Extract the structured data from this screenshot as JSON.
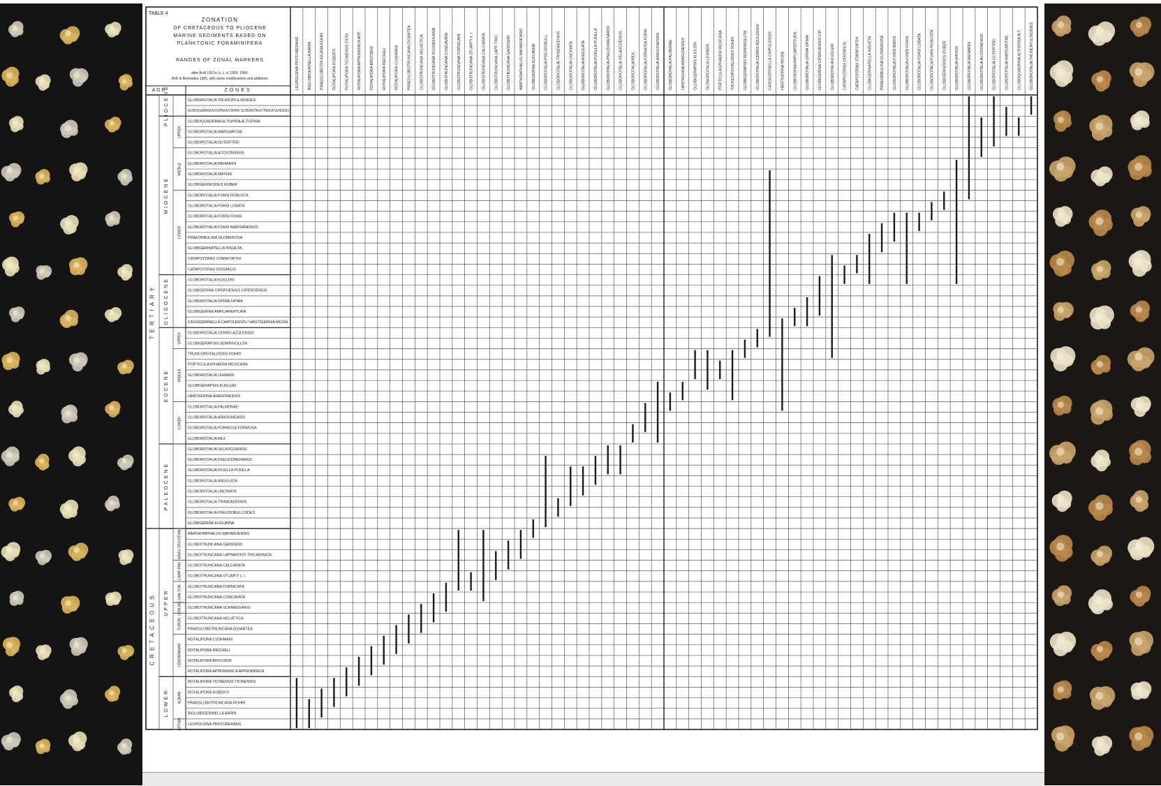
{
  "table": {
    "label": "TABLE 4",
    "title_lines": [
      "ZONATION",
      "OF CRETACEOUS TO PLIOCENE",
      "MARINE SEDIMENTS BASED ON",
      "PLANKTONIC FORAMINIFERA"
    ],
    "subtitle": "RANGES OF ZONAL MARKERS",
    "credit_lines": [
      "after Bolli 1957a, b, c, d; 1959; 1966;",
      "Bolli & Bermúdez 1965, with some modifications and additions"
    ],
    "age_header": "AGE",
    "zones_header": "ZONES"
  },
  "zones": [
    "GLOBOROTALIA TRUNCATULINOIDES",
    "GLOBOQUADRINA ALTISPIRA ALTISPIRA / GLOBOROTALIA TRUNCATULINOIDES",
    "GLOBOQUADRINA ALTISPIRA ALTISPIRA",
    "GLOBOROTALIA MARGARITAE",
    "GLOBOROTALIA DUTERTREI",
    "GLOBOROTALIA ACOSTAENSIS",
    "GLOBOROTALIA MENARDII",
    "GLOBOROTALIA MAYERI",
    "GLOBIGERINOIDES RUBER",
    "GLOBOROTALIA FOHSI ROBUSTA",
    "GLOBOROTALIA FOHSI LOBATA",
    "GLOBOROTALIA FOHSI FOHSI",
    "GLOBOROTALIA FOHSI BARISANENSIS",
    "PRAEORBULINA GLOMEROSA",
    "GLOBIGERINATELLA INSUETA",
    "CATAPSYDRAX STAINFORTHI",
    "CATAPSYDRAX DISSIMILIS",
    "GLOBOROTALIA KUGLERI",
    "GLOBIGERINA CIPEROENSIS CIPEROENSIS",
    "GLOBOROTALIA OPIMA OPIMA",
    "GLOBIGERINA AMPLIAPERTURA",
    "CASSIGERINELLA CHIPOLENSIS / HASTIGERINA MICRA",
    "GLOBOROTALIA CERRO-AZULENSIS",
    "GLOBIGERAPSIS SEMIINVOLUTA",
    "TRUNCOROTALOIDES ROHRI",
    "PORTICULASPHAERA MEXICANA",
    "GLOBOROTALIA LEHNERI",
    "GLOBIGERAPSIS KUGLERI",
    "HANTKENINA ARAGONENSIS",
    "GLOBOROTALIA PALMERAE",
    "GLOBOROTALIA ARAGONENSIS",
    "GLOBOROTALIA FORMOSA FORMOSA",
    "GLOBOROTALIA REX",
    "GLOBOROTALIA VELASCOENSIS",
    "GLOBOROTALIA PSEUDOMENARDII",
    "GLOBOROTALIA PUSILLA PUSILLA",
    "GLOBOROTALIA ANGULATA",
    "GLOBOROTALIA UNCINATA",
    "GLOBOROTALIA TRINIDADENSIS",
    "GLOBOROTALIA PSEUDOBULLOIDES",
    "GLOBIGERINA EUGUBINA",
    "ABATHOMPHALUS MAYAROENSIS",
    "GLOBOTRUNCANA GANSSERI",
    "GLOBOTRUNCANA LAPPARENTI TRICARINATA",
    "GLOBOTRUNCANA CALCARATA",
    "GLOBOTRUNCANA STUARTI s. l.",
    "GLOBOTRUNCANA FORNICATA",
    "GLOBOTRUNCANA CONCAVATA",
    "GLOBOTRUNCANA SCHNEEGANSI",
    "GLOBOTRUNCANA HELVETICA",
    "PRAEGLOBOTRUNCANA GIGANTEA",
    "ROTALIPORA CUSHMANI",
    "ROTALIPORA REICHELI",
    "ROTALIPORA BROTZENI",
    "ROTALIPORA APPENNINICA APPENNINICA",
    "ROTALIPORA TICINENSIS TICINENSIS",
    "ROTALIPORA ROBERTI",
    "PRAEGLOBOTRUNCANA ROHRI",
    "BIGLOBIGERINELLA BARRI",
    "LEUPOLDINA PROTUBERANS"
  ],
  "columns": [
    "LEUPOLDINA PROTUBERANS",
    "BIGLOBIGERINELLA BARRI",
    "PRAEGLOBOTRUNCANA ROHRI",
    "ROTALIPORA ROBERTI",
    "ROTALIPORA TICINENSIS TICIN.",
    "ROTALIPORA APPENNINICA APP.",
    "ROTALIPORA BROTZENI",
    "ROTALIPORA REICHELI",
    "ROTALIPORA CUSHMANI",
    "PRAEGLOBOTRUNCANA GIGANTEA",
    "GLOBOTRUNCANA HELVETICA",
    "GLOBOTRUNCANA SCHNEEGANSI",
    "GLOBOTRUNCANA CONCAVATA",
    "GLOBOTRUNCANA FORNICATA",
    "GLOBOTRUNCANA STUARTI s. l.",
    "GLOBOTRUNCANA CALCARATA",
    "GLOBOTRUNCANA LAPP. TRIC.",
    "GLOBOTRUNCANA GANSSERI",
    "ABATHOMPHALUS MAYAROENSIS",
    "GLOBIGERINA EUGUBINA",
    "GLOBOROTALIA PSEUDOBULL.",
    "GLOBOROTALIA TRINIDADENSIS",
    "GLOBOROTALIA UNCINATA",
    "GLOBOROTALIA ANGULATA",
    "GLOBOROTALIA PUSILLA PUSILLA",
    "GLOBOROTALIA PSEUDOMENARDII",
    "GLOBOROTALIA VELASCOENSIS",
    "GLOBOROTALIA REX",
    "GLOBOROTALIA FORMOSA FORM.",
    "GLOBOROTALIA ARAGONENSIS",
    "GLOBOROTALIA PALMERAE",
    "HANTKENINA ARAGONENSIS",
    "GLOBIGERAPSIS KUGLERI",
    "GLOBOROTALIA LEHNERI",
    "PORTICULASPHAERA MEXICANA",
    "TRUNCOROTALOIDES ROHRI",
    "GLOBIGERAPSIS SEMIINVOLUTA",
    "GLOBOROTALIA CERRO-AZULENSIS",
    "CASSIGERINELLA CHIPOLENSIS",
    "HASTIGERINA MICRA",
    "GLOBIGERINA AMPLIAPERTURA",
    "GLOBOROTALIA OPIMA OPIMA",
    "GLOBIGERINA CIPEROENSIS CIP.",
    "GLOBOROTALIA KUGLERI",
    "CATAPSYDRAX DISSIMILIS",
    "CATAPSYDRAX STAINFORTHI",
    "GLOBIGERINATELLA INSUETA",
    "PRAEORBULINA GLOMEROSA",
    "GLOBOROTALIA FOHSI BARIS.",
    "GLOBOROTALIA FOHSI FOHSI",
    "GLOBOROTALIA FOHSI LOBATA",
    "GLOBOROTALIA FOHSI ROBUSTA",
    "GLOBIGERINOIDES RUBER",
    "GLOBOROTALIA MAYERI",
    "GLOBOROTALIA MENARDII",
    "GLOBOROTALIA ACOSTAENSIS",
    "GLOBOROTALIA DUTERTREI",
    "GLOBOROTALIA MARGARITAE",
    "GLOBOQUADRINA ALTISPIRA ALT.",
    "GLOBOROTALIA TRUNCATULINOIDES"
  ],
  "ranges": [
    [
      0,
      55,
      59
    ],
    [
      1,
      57,
      59
    ],
    [
      2,
      56,
      58
    ],
    [
      3,
      55,
      57
    ],
    [
      4,
      54,
      56
    ],
    [
      5,
      53,
      55
    ],
    [
      6,
      52,
      54
    ],
    [
      7,
      51,
      53
    ],
    [
      8,
      50,
      52
    ],
    [
      9,
      49,
      51
    ],
    [
      10,
      48,
      50
    ],
    [
      11,
      47,
      49
    ],
    [
      12,
      46,
      48
    ],
    [
      13,
      41,
      46
    ],
    [
      14,
      45,
      46
    ],
    [
      15,
      41,
      47
    ],
    [
      16,
      43,
      45
    ],
    [
      17,
      42,
      44
    ],
    [
      18,
      41,
      43
    ],
    [
      19,
      40,
      41
    ],
    [
      20,
      34,
      40
    ],
    [
      21,
      38,
      39
    ],
    [
      22,
      35,
      38
    ],
    [
      23,
      35,
      37
    ],
    [
      24,
      34,
      36
    ],
    [
      25,
      33,
      35
    ],
    [
      26,
      33,
      35
    ],
    [
      27,
      31,
      32
    ],
    [
      28,
      29,
      31
    ],
    [
      29,
      27,
      32
    ],
    [
      30,
      28,
      29
    ],
    [
      31,
      27,
      28
    ],
    [
      32,
      24,
      26
    ],
    [
      33,
      24,
      27
    ],
    [
      34,
      25,
      26
    ],
    [
      35,
      24,
      28
    ],
    [
      36,
      23,
      24
    ],
    [
      37,
      22,
      23
    ],
    [
      38,
      7,
      22
    ],
    [
      39,
      21,
      29
    ],
    [
      40,
      20,
      21
    ],
    [
      41,
      19,
      21
    ],
    [
      42,
      17,
      20
    ],
    [
      43,
      15,
      24
    ],
    [
      44,
      16,
      17
    ],
    [
      45,
      15,
      16
    ],
    [
      46,
      13,
      17
    ],
    [
      47,
      12,
      14
    ],
    [
      48,
      11,
      13
    ],
    [
      49,
      11,
      17
    ],
    [
      50,
      11,
      12
    ],
    [
      51,
      10,
      11
    ],
    [
      52,
      9,
      10
    ],
    [
      53,
      6,
      17
    ],
    [
      54,
      0,
      9
    ],
    [
      55,
      2,
      5
    ],
    [
      56,
      0,
      4
    ],
    [
      57,
      1,
      3
    ],
    [
      58,
      2,
      3
    ],
    [
      59,
      0,
      1
    ]
  ],
  "ages": {
    "systems": [
      {
        "label": "TERTIARY",
        "from": 0,
        "to": 40
      },
      {
        "label": "CRETACEOUS",
        "from": 41,
        "to": 59
      }
    ],
    "series": [
      {
        "label": "PLIOCENE",
        "from": 0,
        "to": 1
      },
      {
        "label": "MIOCENE",
        "from": 2,
        "to": 16
      },
      {
        "label": "OLIGOCENE",
        "from": 17,
        "to": 21
      },
      {
        "label": "EOCENE",
        "from": 22,
        "to": 32
      },
      {
        "label": "PALEOCENE",
        "from": 33,
        "to": 40
      },
      {
        "label": "UPPER",
        "from": 41,
        "to": 54
      },
      {
        "label": "LOWER",
        "from": 55,
        "to": 59
      }
    ],
    "stages": [
      {
        "label": "UPPER",
        "from": 2,
        "to": 4
      },
      {
        "label": "MIDDLE",
        "from": 5,
        "to": 8
      },
      {
        "label": "LOWER",
        "from": 9,
        "to": 16
      },
      {
        "label": "UPPER",
        "from": 22,
        "to": 23
      },
      {
        "label": "MIDDLE",
        "from": 24,
        "to": 28
      },
      {
        "label": "LOWER",
        "from": 29,
        "to": 32
      },
      {
        "label": "MAAS-TRICHTIAN",
        "from": 41,
        "to": 43
      },
      {
        "label": "CAMP-PAN.",
        "from": 44,
        "to": 45
      },
      {
        "label": "SAN-TON.",
        "from": 46,
        "to": 47
      },
      {
        "label": "CON-IAC.",
        "from": 48,
        "to": 48
      },
      {
        "label": "TURON.",
        "from": 49,
        "to": 50
      },
      {
        "label": "CENOMANIAN",
        "from": 51,
        "to": 54
      },
      {
        "label": "ALBIAN",
        "from": 55,
        "to": 58
      },
      {
        "label": "APTIAN",
        "from": 59,
        "to": 59
      }
    ]
  },
  "colors": {
    "ink": "#1a1a1a",
    "grid": "#555555",
    "paper": "#ffffff",
    "photo_left_bg": "#141414",
    "photo_right_bg": "#1c1712"
  },
  "photos": {
    "left": "foraminifera-specimen-photo",
    "right": "foraminifera-specimen-photo"
  }
}
